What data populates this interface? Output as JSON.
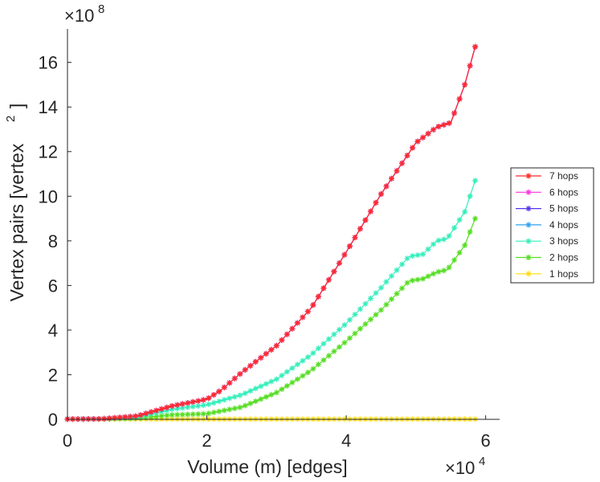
{
  "chart_data": {
    "type": "line",
    "xlabel": "Volume (m) [edges]",
    "ylabel": "Vertex pairs [vertex",
    "ylabel_sup": "2",
    "ylabel_close": "]",
    "x_exponent_label": "×10",
    "x_exponent": "4",
    "y_exponent_label": "×10",
    "y_exponent": "8",
    "xlim": [
      0,
      6.2
    ],
    "ylim": [
      0,
      17.5
    ],
    "x_ticks": [
      0,
      2,
      4,
      6
    ],
    "x_tick_labels": [
      "0",
      "2",
      "4",
      "6"
    ],
    "y_ticks": [
      0,
      2,
      4,
      6,
      8,
      10,
      12,
      14,
      16
    ],
    "y_tick_labels": [
      "0",
      "2",
      "4",
      "6",
      "8",
      "10",
      "12",
      "14",
      "16"
    ],
    "grid": false,
    "legend_position": "right",
    "marker": "*",
    "series": [
      {
        "name": "7 hops",
        "color": "#ff2a2a",
        "points": [
          [
            0,
            0.01
          ],
          [
            0.5,
            0.02
          ],
          [
            1.0,
            0.15
          ],
          [
            1.5,
            0.6
          ],
          [
            2.0,
            0.9
          ],
          [
            2.2,
            1.3
          ],
          [
            2.5,
            2.1
          ],
          [
            3.0,
            3.3
          ],
          [
            3.5,
            5.0
          ],
          [
            4.0,
            7.5
          ],
          [
            4.5,
            10.1
          ],
          [
            5.0,
            12.4
          ],
          [
            5.3,
            13.1
          ],
          [
            5.5,
            13.3
          ],
          [
            5.7,
            15.0
          ],
          [
            5.85,
            16.7
          ]
        ]
      },
      {
        "name": "6 hops",
        "color": "#ff33dd",
        "points": [
          [
            0,
            0.01
          ],
          [
            0.5,
            0.02
          ],
          [
            1.0,
            0.15
          ],
          [
            1.5,
            0.6
          ],
          [
            2.0,
            0.9
          ],
          [
            2.2,
            1.3
          ],
          [
            2.5,
            2.1
          ],
          [
            3.0,
            3.3
          ],
          [
            3.5,
            5.0
          ],
          [
            4.0,
            7.5
          ],
          [
            4.5,
            10.1
          ],
          [
            5.0,
            12.4
          ],
          [
            5.3,
            13.1
          ],
          [
            5.5,
            13.3
          ],
          [
            5.7,
            15.0
          ],
          [
            5.85,
            16.7
          ]
        ]
      },
      {
        "name": "5 hops",
        "color": "#5530ee",
        "points": [
          [
            0,
            0.01
          ],
          [
            0.5,
            0.02
          ],
          [
            1.0,
            0.15
          ],
          [
            1.5,
            0.6
          ],
          [
            2.0,
            0.9
          ],
          [
            2.2,
            1.3
          ],
          [
            2.5,
            2.1
          ],
          [
            3.0,
            3.3
          ],
          [
            3.5,
            5.0
          ],
          [
            4.0,
            7.5
          ],
          [
            4.5,
            10.1
          ],
          [
            5.0,
            12.4
          ],
          [
            5.3,
            13.1
          ],
          [
            5.5,
            13.3
          ],
          [
            5.7,
            15.0
          ],
          [
            5.85,
            16.7
          ]
        ]
      },
      {
        "name": "4 hops",
        "color": "#2ea0f0",
        "points": [
          [
            0,
            0.01
          ],
          [
            0.5,
            0.02
          ],
          [
            1.0,
            0.15
          ],
          [
            1.5,
            0.6
          ],
          [
            2.0,
            0.9
          ],
          [
            2.2,
            1.3
          ],
          [
            2.5,
            2.1
          ],
          [
            3.0,
            3.3
          ],
          [
            3.5,
            5.0
          ],
          [
            4.0,
            7.5
          ],
          [
            4.5,
            10.1
          ],
          [
            5.0,
            12.4
          ],
          [
            5.3,
            13.1
          ],
          [
            5.5,
            13.3
          ],
          [
            5.7,
            15.0
          ],
          [
            5.85,
            16.7
          ]
        ]
      },
      {
        "name": "3 hops",
        "color": "#33eebb",
        "points": [
          [
            0,
            0.01
          ],
          [
            0.5,
            0.02
          ],
          [
            1.0,
            0.1
          ],
          [
            1.5,
            0.45
          ],
          [
            2.0,
            0.65
          ],
          [
            2.5,
            1.1
          ],
          [
            3.0,
            1.8
          ],
          [
            3.5,
            2.9
          ],
          [
            4.0,
            4.3
          ],
          [
            4.5,
            5.9
          ],
          [
            4.9,
            7.3
          ],
          [
            5.1,
            7.4
          ],
          [
            5.3,
            8.0
          ],
          [
            5.45,
            8.1
          ],
          [
            5.7,
            9.3
          ],
          [
            5.85,
            10.7
          ]
        ]
      },
      {
        "name": "2 hops",
        "color": "#55dd22",
        "points": [
          [
            0,
            0.01
          ],
          [
            0.5,
            0.02
          ],
          [
            1.0,
            0.05
          ],
          [
            1.5,
            0.2
          ],
          [
            2.0,
            0.25
          ],
          [
            2.5,
            0.55
          ],
          [
            3.0,
            1.2
          ],
          [
            3.5,
            2.2
          ],
          [
            4.0,
            3.5
          ],
          [
            4.5,
            4.9
          ],
          [
            4.9,
            6.2
          ],
          [
            5.1,
            6.3
          ],
          [
            5.3,
            6.6
          ],
          [
            5.45,
            6.7
          ],
          [
            5.7,
            7.8
          ],
          [
            5.85,
            9.0
          ]
        ]
      },
      {
        "name": "1 hops",
        "color": "#ffdd11",
        "points": [
          [
            0,
            0.01
          ],
          [
            5.85,
            0.01
          ]
        ]
      }
    ]
  }
}
